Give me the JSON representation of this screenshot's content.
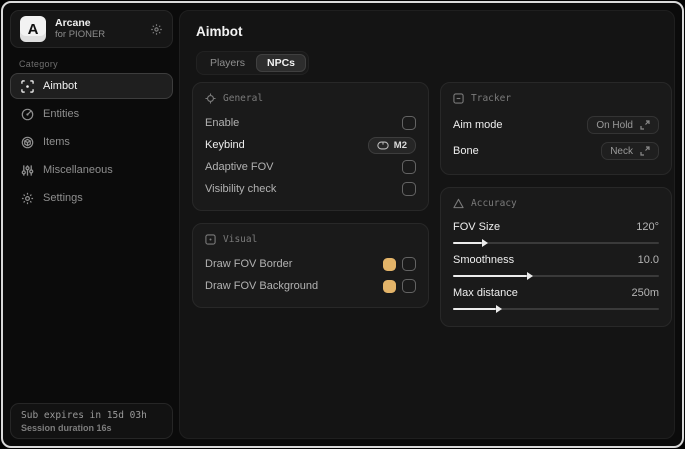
{
  "colors": {
    "accent_gold": "#e3b469"
  },
  "window": {
    "brand": {
      "logo_letter": "A",
      "title": "Arcane",
      "subtitle": "for PIONER",
      "action_icon": "gear-icon"
    },
    "sidebar": {
      "category_label": "Category",
      "items": [
        {
          "label": "Aimbot",
          "icon": "crosshair-scan-icon",
          "active": true
        },
        {
          "label": "Entities",
          "icon": "radar-icon",
          "active": false
        },
        {
          "label": "Items",
          "icon": "box-icon",
          "active": false
        },
        {
          "label": "Miscellaneous",
          "icon": "sliders-icon",
          "active": false
        },
        {
          "label": "Settings",
          "icon": "gear-icon",
          "active": false
        }
      ],
      "footer": {
        "sub_expires": "Sub expires in 15d 03h",
        "session_duration": "Session duration 16s"
      }
    },
    "main": {
      "title": "Aimbot",
      "tabs": [
        {
          "label": "Players",
          "active": false
        },
        {
          "label": "NPCs",
          "active": true
        }
      ],
      "cards": {
        "general": {
          "title": "General",
          "icon": "crosshair-icon",
          "rows": [
            {
              "label": "Enable",
              "control": "checkbox",
              "checked": false
            },
            {
              "label": "Keybind",
              "control": "keybind",
              "value": "M2",
              "value_icon": "mouse-icon"
            },
            {
              "label": "Adaptive FOV",
              "control": "checkbox",
              "checked": false
            },
            {
              "label": "Visibility check",
              "control": "checkbox",
              "checked": false
            }
          ]
        },
        "visual": {
          "title": "Visual",
          "icon": "viewfinder-icon",
          "rows": [
            {
              "label": "Draw FOV Border",
              "control": "color-checkbox",
              "color": "#e3b469",
              "checked": false
            },
            {
              "label": "Draw FOV Background",
              "control": "color-checkbox",
              "color": "#e3b469",
              "checked": false
            }
          ]
        },
        "tracker": {
          "title": "Tracker",
          "icon": "frame-icon",
          "rows": [
            {
              "label": "Aim mode",
              "control": "select",
              "value": "On Hold"
            },
            {
              "label": "Bone",
              "control": "select",
              "value": "Neck"
            }
          ]
        },
        "accuracy": {
          "title": "Accuracy",
          "icon": "triangle-icon",
          "sliders": [
            {
              "label": "FOV Size",
              "value": "120°",
              "percent": 14
            },
            {
              "label": "Smoothness",
              "value": "10.0",
              "percent": 36
            },
            {
              "label": "Max distance",
              "value": "250m",
              "percent": 21
            }
          ]
        }
      }
    }
  }
}
